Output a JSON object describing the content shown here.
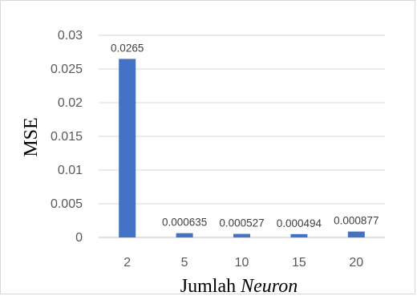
{
  "chart_data": {
    "type": "bar",
    "categories": [
      "2",
      "5",
      "10",
      "15",
      "20"
    ],
    "values": [
      0.0265,
      0.000635,
      0.000527,
      0.000494,
      0.000877
    ],
    "data_labels": [
      "0.0265",
      "0.000635",
      "0.000527",
      "0.000494",
      "0.000877"
    ],
    "ylim": [
      0,
      0.03
    ],
    "yticks": [
      0,
      0.005,
      0.01,
      0.015,
      0.02,
      0.025,
      0.03
    ],
    "ytick_labels": [
      "0",
      "0.005",
      "0.01",
      "0.015",
      "0.02",
      "0.025",
      "0.03"
    ],
    "ylabel": "MSE",
    "xlabel_plain": "Jumlah ",
    "xlabel_italic": "Neuron",
    "grid": true,
    "bar_color": "#4472c4",
    "grid_color": "#d9d9d9"
  }
}
